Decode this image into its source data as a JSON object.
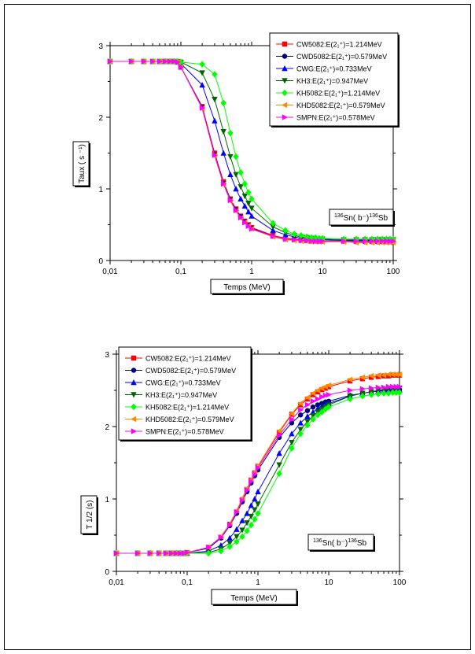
{
  "chart_data": [
    {
      "type": "line",
      "xscale": "log",
      "xlim": [
        0.01,
        100
      ],
      "ylim": [
        0,
        3
      ],
      "xticks": [
        "0,01",
        "0,1",
        "1",
        "10",
        "100"
      ],
      "yticks": [
        "0",
        "1",
        "2",
        "3"
      ],
      "xlabel": "Temps (MeV)",
      "ylabel": "Taux ( s ⁻¹)",
      "annotation": {
        "pre": "136",
        "a": "Sn( b⁻)",
        "mid": "136",
        "b": "Sb"
      },
      "legend_position": "top-right",
      "x": [
        0.01,
        0.02,
        0.03,
        0.04,
        0.05,
        0.06,
        0.07,
        0.08,
        0.09,
        0.1,
        0.2,
        0.3,
        0.4,
        0.5,
        0.6,
        0.7,
        0.8,
        0.9,
        1,
        2,
        3,
        4,
        5,
        6,
        7,
        8,
        9,
        10,
        20,
        30,
        40,
        50,
        60,
        70,
        80,
        90,
        100
      ],
      "series": [
        {
          "name": "CW5082:E(2₁⁺)=1.214MeV",
          "color": "#ff0000",
          "marker": "square",
          "values": [
            2.78,
            2.78,
            2.78,
            2.78,
            2.78,
            2.78,
            2.78,
            2.78,
            2.77,
            2.7,
            2.15,
            1.5,
            1.1,
            0.86,
            0.72,
            0.62,
            0.55,
            0.5,
            0.46,
            0.35,
            0.31,
            0.3,
            0.29,
            0.28,
            0.28,
            0.28,
            0.27,
            0.27,
            0.27,
            0.27,
            0.27,
            0.27,
            0.27,
            0.27,
            0.27,
            0.27,
            0.27
          ]
        },
        {
          "name": "CWD5082:E(2₁⁺)=0.579MeV",
          "color": "#000080",
          "marker": "circle",
          "values": [
            2.78,
            2.78,
            2.78,
            2.78,
            2.78,
            2.78,
            2.78,
            2.78,
            2.77,
            2.7,
            2.14,
            1.48,
            1.08,
            0.85,
            0.71,
            0.61,
            0.54,
            0.49,
            0.45,
            0.34,
            0.3,
            0.29,
            0.28,
            0.28,
            0.27,
            0.27,
            0.27,
            0.27,
            0.27,
            0.26,
            0.26,
            0.26,
            0.26,
            0.26,
            0.26,
            0.26,
            0.26
          ]
        },
        {
          "name": "CWG:E(2₁⁺)=0.733MeV",
          "color": "#0000ff",
          "marker": "triangle-up",
          "values": [
            2.78,
            2.78,
            2.78,
            2.78,
            2.78,
            2.78,
            2.78,
            2.78,
            2.78,
            2.75,
            2.45,
            1.95,
            1.5,
            1.2,
            1.0,
            0.86,
            0.76,
            0.68,
            0.62,
            0.42,
            0.36,
            0.33,
            0.31,
            0.3,
            0.3,
            0.29,
            0.29,
            0.29,
            0.28,
            0.28,
            0.28,
            0.28,
            0.28,
            0.28,
            0.28,
            0.28,
            0.28
          ]
        },
        {
          "name": "KH3:E(2₁⁺)=0.947MeV",
          "color": "#006400",
          "marker": "triangle-down",
          "values": [
            2.78,
            2.78,
            2.78,
            2.78,
            2.78,
            2.78,
            2.78,
            2.78,
            2.78,
            2.77,
            2.62,
            2.25,
            1.8,
            1.45,
            1.2,
            1.03,
            0.9,
            0.8,
            0.73,
            0.47,
            0.39,
            0.35,
            0.33,
            0.32,
            0.31,
            0.3,
            0.3,
            0.3,
            0.29,
            0.29,
            0.29,
            0.29,
            0.29,
            0.29,
            0.29,
            0.29,
            0.29
          ]
        },
        {
          "name": "KH5082:E(2₁⁺)=1.214MeV",
          "color": "#00ff00",
          "marker": "diamond",
          "values": [
            2.78,
            2.78,
            2.78,
            2.78,
            2.78,
            2.78,
            2.78,
            2.78,
            2.78,
            2.77,
            2.74,
            2.6,
            2.2,
            1.78,
            1.45,
            1.23,
            1.07,
            0.95,
            0.86,
            0.52,
            0.42,
            0.37,
            0.35,
            0.33,
            0.32,
            0.32,
            0.31,
            0.31,
            0.3,
            0.3,
            0.3,
            0.3,
            0.3,
            0.3,
            0.3,
            0.3,
            0.3
          ]
        },
        {
          "name": "KHD5082:E(2₁⁺)=0.579MeV",
          "color": "#ff8c00",
          "marker": "triangle-left",
          "values": [
            2.78,
            2.78,
            2.78,
            2.78,
            2.78,
            2.78,
            2.78,
            2.78,
            2.77,
            2.7,
            2.12,
            1.46,
            1.06,
            0.83,
            0.69,
            0.59,
            0.53,
            0.48,
            0.44,
            0.33,
            0.29,
            0.28,
            0.27,
            0.27,
            0.26,
            0.26,
            0.26,
            0.26,
            0.26,
            0.25,
            0.25,
            0.25,
            0.25,
            0.25,
            0.25,
            0.25,
            0.25
          ]
        },
        {
          "name": "SMPN:E(2₁⁺)=0.578MeV",
          "color": "#ff00ff",
          "marker": "triangle-right",
          "values": [
            2.78,
            2.78,
            2.78,
            2.78,
            2.78,
            2.78,
            2.78,
            2.78,
            2.77,
            2.7,
            2.13,
            1.47,
            1.07,
            0.84,
            0.7,
            0.6,
            0.53,
            0.48,
            0.44,
            0.34,
            0.3,
            0.29,
            0.28,
            0.28,
            0.27,
            0.27,
            0.27,
            0.27,
            0.27,
            0.27,
            0.27,
            0.27,
            0.27,
            0.27,
            0.27,
            0.27,
            0.27
          ]
        }
      ]
    },
    {
      "type": "line",
      "xscale": "log",
      "xlim": [
        0.01,
        100
      ],
      "ylim": [
        0,
        3
      ],
      "xticks": [
        "0,01",
        "0,1",
        "1",
        "10",
        "100"
      ],
      "yticks": [
        "0",
        "1",
        "2",
        "3"
      ],
      "xlabel": "Temps (MeV)",
      "ylabel": "T 1/2 (s)",
      "annotation": {
        "pre": "136",
        "a": "Sn( b⁻)",
        "mid": "136",
        "b": "Sb"
      },
      "legend_position": "top-left",
      "x": [
        0.01,
        0.02,
        0.03,
        0.04,
        0.05,
        0.06,
        0.07,
        0.08,
        0.09,
        0.1,
        0.2,
        0.3,
        0.4,
        0.5,
        0.6,
        0.7,
        0.8,
        0.9,
        1,
        2,
        3,
        4,
        5,
        6,
        7,
        8,
        9,
        10,
        20,
        30,
        40,
        50,
        60,
        70,
        80,
        90,
        100
      ],
      "series": [
        {
          "name": "CW5082:E(2₁⁺)=1.214MeV",
          "color": "#ff0000",
          "marker": "square",
          "values": [
            0.25,
            0.25,
            0.25,
            0.25,
            0.25,
            0.25,
            0.25,
            0.25,
            0.25,
            0.26,
            0.33,
            0.47,
            0.65,
            0.82,
            0.99,
            1.13,
            1.26,
            1.36,
            1.45,
            1.92,
            2.17,
            2.3,
            2.38,
            2.44,
            2.48,
            2.51,
            2.53,
            2.55,
            2.63,
            2.66,
            2.68,
            2.69,
            2.7,
            2.7,
            2.71,
            2.71,
            2.71
          ]
        },
        {
          "name": "CWD5082:E(2₁⁺)=0.579MeV",
          "color": "#000080",
          "marker": "circle",
          "values": [
            0.25,
            0.25,
            0.25,
            0.25,
            0.25,
            0.25,
            0.25,
            0.25,
            0.25,
            0.26,
            0.32,
            0.46,
            0.63,
            0.8,
            0.96,
            1.1,
            1.22,
            1.32,
            1.4,
            1.85,
            2.05,
            2.16,
            2.22,
            2.27,
            2.3,
            2.32,
            2.34,
            2.35,
            2.43,
            2.46,
            2.48,
            2.49,
            2.5,
            2.5,
            2.51,
            2.51,
            2.51
          ]
        },
        {
          "name": "CWG:E(2₁⁺)=0.733MeV",
          "color": "#0000ff",
          "marker": "triangle-up",
          "values": [
            0.25,
            0.25,
            0.25,
            0.25,
            0.25,
            0.25,
            0.25,
            0.25,
            0.25,
            0.25,
            0.28,
            0.36,
            0.46,
            0.58,
            0.7,
            0.8,
            0.91,
            1.0,
            1.1,
            1.63,
            1.9,
            2.05,
            2.14,
            2.2,
            2.25,
            2.28,
            2.3,
            2.32,
            2.42,
            2.46,
            2.48,
            2.49,
            2.5,
            2.5,
            2.51,
            2.51,
            2.51
          ]
        },
        {
          "name": "KH3:E(2₁⁺)=0.947MeV",
          "color": "#006400",
          "marker": "triangle-down",
          "values": [
            0.25,
            0.25,
            0.25,
            0.25,
            0.25,
            0.25,
            0.25,
            0.25,
            0.25,
            0.25,
            0.26,
            0.31,
            0.39,
            0.48,
            0.57,
            0.67,
            0.76,
            0.85,
            0.93,
            1.47,
            1.78,
            1.96,
            2.07,
            2.15,
            2.2,
            2.24,
            2.27,
            2.3,
            2.42,
            2.46,
            2.48,
            2.5,
            2.51,
            2.52,
            2.52,
            2.53,
            2.53
          ]
        },
        {
          "name": "KH5082:E(2₁⁺)=1.214MeV",
          "color": "#00ff00",
          "marker": "diamond",
          "values": [
            0.25,
            0.25,
            0.25,
            0.25,
            0.25,
            0.25,
            0.25,
            0.25,
            0.25,
            0.25,
            0.25,
            0.28,
            0.34,
            0.41,
            0.48,
            0.56,
            0.64,
            0.72,
            0.8,
            1.35,
            1.7,
            1.9,
            2.02,
            2.1,
            2.16,
            2.2,
            2.24,
            2.27,
            2.38,
            2.42,
            2.44,
            2.45,
            2.46,
            2.46,
            2.47,
            2.47,
            2.47
          ]
        },
        {
          "name": "KHD5082:E(2₁⁺)=0.579MeV",
          "color": "#ff8c00",
          "marker": "triangle-left",
          "values": [
            0.25,
            0.25,
            0.25,
            0.25,
            0.25,
            0.25,
            0.25,
            0.25,
            0.25,
            0.26,
            0.33,
            0.48,
            0.66,
            0.84,
            1.01,
            1.15,
            1.27,
            1.37,
            1.46,
            1.94,
            2.18,
            2.32,
            2.4,
            2.46,
            2.5,
            2.53,
            2.55,
            2.57,
            2.65,
            2.68,
            2.7,
            2.71,
            2.71,
            2.72,
            2.72,
            2.72,
            2.72
          ]
        },
        {
          "name": "SMPN:E(2₁⁺)=0.578MeV",
          "color": "#ff00ff",
          "marker": "triangle-right",
          "values": [
            0.25,
            0.25,
            0.25,
            0.25,
            0.25,
            0.25,
            0.25,
            0.25,
            0.25,
            0.26,
            0.33,
            0.47,
            0.64,
            0.82,
            0.98,
            1.12,
            1.24,
            1.34,
            1.43,
            1.88,
            2.1,
            2.23,
            2.3,
            2.35,
            2.38,
            2.41,
            2.43,
            2.44,
            2.5,
            2.52,
            2.53,
            2.54,
            2.54,
            2.55,
            2.55,
            2.55,
            2.55
          ]
        }
      ]
    }
  ]
}
